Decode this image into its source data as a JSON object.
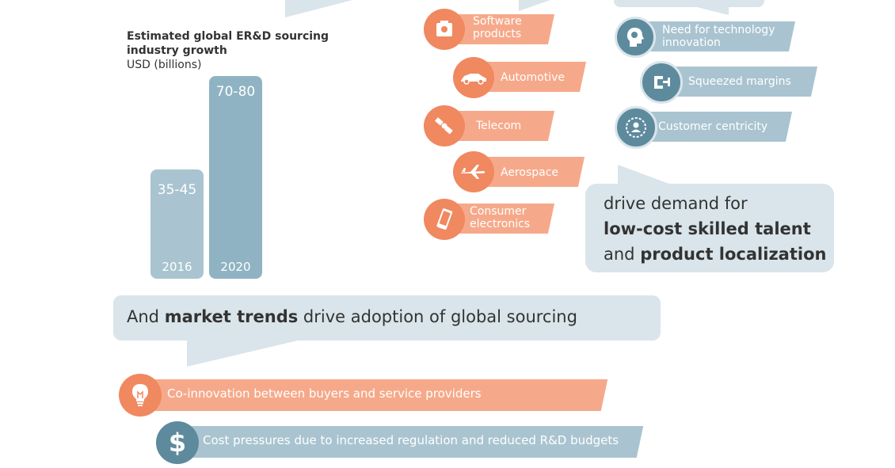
{
  "chart": {
    "title": "Estimated global ER&D sourcing industry growth",
    "unit": "USD (billions)"
  },
  "chart_data": {
    "type": "bar",
    "categories": [
      "2016",
      "2020"
    ],
    "value_labels": [
      "35-45",
      "70-80"
    ],
    "values": [
      40,
      75
    ],
    "title": "Estimated global ER&D sourcing industry growth",
    "ylabel": "USD (billions)",
    "colors": [
      "#a9c4d0",
      "#8fb3c3"
    ]
  },
  "industries": [
    {
      "label": "Software products",
      "icon": "software-box-icon"
    },
    {
      "label": "Automotive",
      "icon": "car-icon"
    },
    {
      "label": "Telecom",
      "icon": "satellite-icon"
    },
    {
      "label": "Aerospace",
      "icon": "airplane-icon"
    },
    {
      "label": "Consumer electronics",
      "icon": "smartphone-icon"
    }
  ],
  "drivers": [
    {
      "label": "Need for technology innovation",
      "icon": "head-lightbulb-icon"
    },
    {
      "label": "Squeezed margins",
      "icon": "clamp-icon"
    },
    {
      "label": "Customer centricity",
      "icon": "customer-target-icon"
    }
  ],
  "demand_bubble": {
    "line1": "drive demand for",
    "line2": "low-cost skilled talent",
    "line3_prefix": "and",
    "line3_bold": "product localization"
  },
  "market_bubble": {
    "prefix": "And",
    "bold": "market trends",
    "suffix": "drive adoption of global sourcing"
  },
  "trends": [
    {
      "label": "Co-innovation between buyers and service providers",
      "icon": "lightbulb-icon"
    },
    {
      "label": "Cost pressures due to increased regulation and reduced R&D budgets",
      "icon": "dollar-icon"
    }
  ],
  "colors": {
    "orange": "#f6a98a",
    "orange_dark": "#f08860",
    "blue": "#a9c4d0",
    "blue_dark": "#5e8a9d",
    "bubble": "#d9e5ea"
  }
}
